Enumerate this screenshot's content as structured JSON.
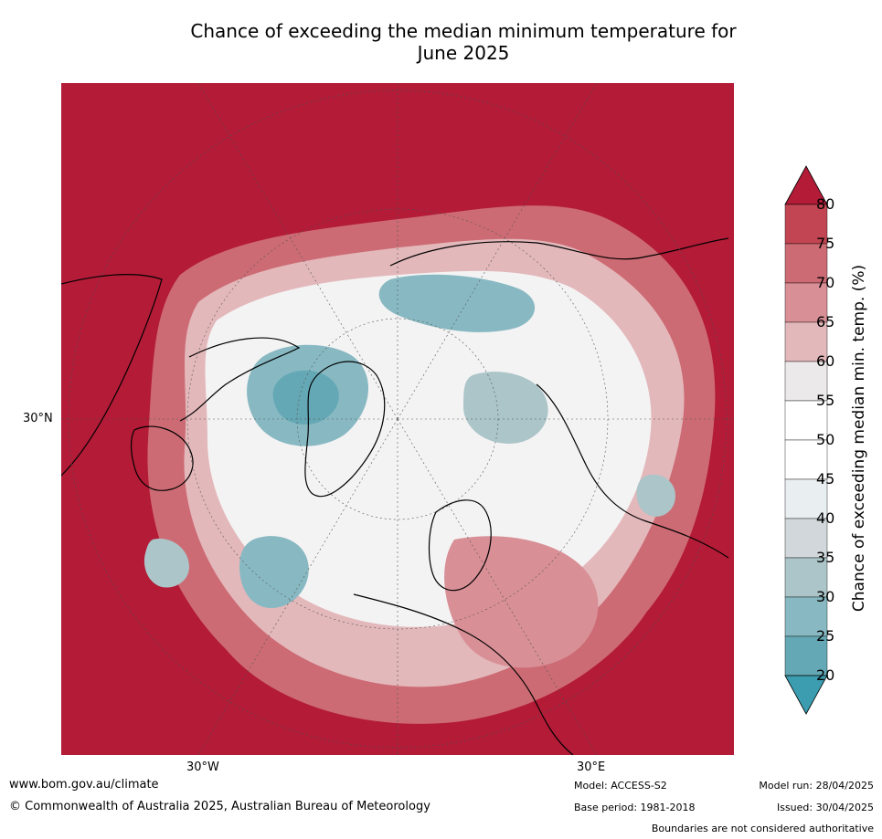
{
  "title_line1": "Chance of exceeding the median minimum temperature for",
  "title_line2": "June 2025",
  "map": {
    "projection": "north polar stereographic",
    "lat_label": "30°N",
    "lon_labels": [
      "30°W",
      "30°E"
    ],
    "colors": {
      "above_80": "#b31b37",
      "75_80": "#c14552",
      "70_75": "#cd6b74",
      "65_70": "#d88f96",
      "60_65": "#e3b8bb",
      "55_60": "#ebe9ea",
      "50_55": "#ffffff",
      "45_50": "#ffffff",
      "40_45": "#e9eef1",
      "35_40": "#d1d7da",
      "30_35": "#abc5c9",
      "25_30": "#88b9c2",
      "20_25": "#65a8b5",
      "below_20": "#3c9db0"
    }
  },
  "colorbar": {
    "ticks": [
      "80",
      "75",
      "70",
      "65",
      "60",
      "55",
      "50",
      "45",
      "40",
      "35",
      "30",
      "25",
      "20"
    ],
    "label": "Chance of exceeding median min. temp. (%)"
  },
  "footer": {
    "url": "www.bom.gov.au/climate",
    "copyright": "© Commonwealth of Australia 2025, Australian Bureau of Meteorology",
    "model": "Model: ACCESS-S2",
    "base_period": "Base period: 1981-2018",
    "model_run": "Model run: 28/04/2025",
    "issued": "Issued: 30/04/2025",
    "disclaimer": "Boundaries are not considered authoritative"
  }
}
